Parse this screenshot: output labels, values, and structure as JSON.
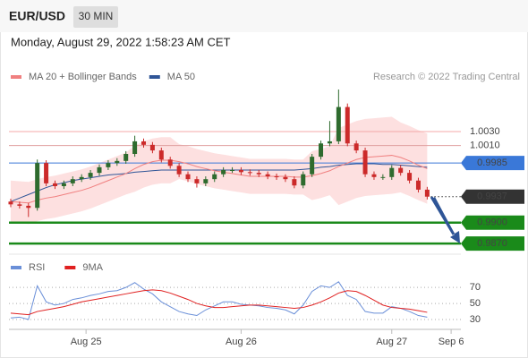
{
  "header": {
    "symbol": "EUR/USD",
    "timeframe": "30 MIN",
    "date": "Monday, August 29, 2022 1:58:23 AM CET"
  },
  "copyright": "Research © 2022 Trading Central",
  "chart_data": [
    {
      "type": "candlestick",
      "legend": [
        {
          "name": "MA 20 + Bollinger Bands",
          "color": "#f08080"
        },
        {
          "name": "MA 50",
          "color": "#2f5597"
        }
      ],
      "open": [
        0.993,
        0.9926,
        0.9924,
        0.9921,
        0.9985,
        0.9956,
        0.9952,
        0.9956,
        0.9962,
        0.9965,
        0.9971,
        0.9979,
        0.9985,
        0.9988,
        0.9998,
        1.0016,
        1.0011,
        1.0003,
        0.999,
        0.9981,
        0.9969,
        0.9962,
        0.9956,
        0.9962,
        0.9969,
        0.9975,
        0.9975,
        0.9972,
        0.9971,
        0.9969,
        0.9966,
        0.9965,
        0.9962,
        0.9953,
        0.9969,
        0.9994,
        1.0013,
        1.0016,
        1.0065,
        1.0013,
        1.0003,
        0.9969,
        0.9965,
        0.9965,
        0.9978,
        0.9971,
        0.996,
        0.9947
      ],
      "high": [
        0.9934,
        0.993,
        0.9928,
        0.999,
        0.9989,
        0.996,
        0.996,
        0.9966,
        0.9969,
        0.9975,
        0.9983,
        0.9989,
        0.9992,
        1.0002,
        1.0024,
        1.002,
        1.0015,
        1.0007,
        0.9994,
        0.9985,
        0.9973,
        0.9966,
        0.9966,
        0.9973,
        0.9979,
        0.9979,
        0.9979,
        0.9976,
        0.9975,
        0.9973,
        0.997,
        0.9969,
        0.9966,
        0.9973,
        0.9998,
        1.0017,
        1.0045,
        1.009,
        1.007,
        1.0017,
        1.0007,
        0.9973,
        0.9969,
        0.9982,
        0.9982,
        0.9975,
        0.9964,
        0.9951
      ],
      "low": [
        0.9922,
        0.992,
        0.9908,
        0.9917,
        0.9952,
        0.9948,
        0.9948,
        0.9952,
        0.9958,
        0.9961,
        0.9967,
        0.9975,
        0.9981,
        0.9984,
        0.9994,
        1.0007,
        0.9999,
        0.9986,
        0.9977,
        0.9965,
        0.9958,
        0.995,
        0.9952,
        0.9958,
        0.9965,
        0.9971,
        0.9968,
        0.9967,
        0.9965,
        0.9962,
        0.9961,
        0.9958,
        0.9949,
        0.9949,
        0.9965,
        0.999,
        1.0009,
        1.0012,
        1.0009,
        0.9999,
        0.9965,
        0.9961,
        0.9961,
        0.9961,
        0.9967,
        0.9956,
        0.9943,
        0.9933
      ],
      "close": [
        0.9926,
        0.9924,
        0.9921,
        0.9985,
        0.9956,
        0.9952,
        0.9956,
        0.9962,
        0.9965,
        0.9971,
        0.9979,
        0.9985,
        0.9988,
        0.9998,
        1.0016,
        1.0011,
        1.0003,
        0.999,
        0.9981,
        0.9969,
        0.9962,
        0.9956,
        0.9962,
        0.9969,
        0.9975,
        0.9975,
        0.9972,
        0.9971,
        0.9969,
        0.9966,
        0.9965,
        0.9962,
        0.9953,
        0.9969,
        0.9994,
        1.0013,
        1.0016,
        1.0065,
        1.0013,
        1.0003,
        0.9969,
        0.9965,
        0.9965,
        0.9978,
        0.9971,
        0.996,
        0.9947,
        0.9937
      ],
      "up_color": "#2e6b2e",
      "down_color": "#cc2a2a",
      "ma20": [
        0.993,
        0.9929,
        0.9928,
        0.9932,
        0.9935,
        0.9937,
        0.994,
        0.9943,
        0.9946,
        0.995,
        0.9955,
        0.996,
        0.9965,
        0.997,
        0.9977,
        0.9983,
        0.9987,
        0.9989,
        0.9989,
        0.9987,
        0.9984,
        0.998,
        0.9977,
        0.9974,
        0.9972,
        0.997,
        0.9968,
        0.9966,
        0.9966,
        0.9966,
        0.9966,
        0.9966,
        0.9965,
        0.9965,
        0.9967,
        0.997,
        0.9974,
        0.998,
        0.9985,
        0.999,
        0.9993,
        0.9994,
        0.9995,
        0.9996,
        0.9993,
        0.9988,
        0.9982,
        0.9977
      ],
      "band_upper": [
        0.996,
        0.9959,
        0.9958,
        0.9962,
        0.9965,
        0.9967,
        0.997,
        0.9973,
        0.9976,
        0.998,
        0.9985,
        0.999,
        0.9995,
        1.0,
        1.001,
        1.0016,
        1.002,
        1.0022,
        1.0022,
        1.0012,
        1.0009,
        1.0005,
        1.0002,
        0.9999,
        0.9997,
        0.9995,
        0.9993,
        0.9991,
        0.9991,
        0.9991,
        0.9991,
        0.9991,
        0.999,
        0.999,
        1.0002,
        1.0005,
        1.0009,
        1.0035,
        1.004,
        1.0045,
        1.0048,
        1.0049,
        1.005,
        1.0051,
        1.0043,
        1.0038,
        1.0032,
        1.0027
      ],
      "band_lower": [
        0.99,
        0.9899,
        0.9898,
        0.9902,
        0.9905,
        0.9907,
        0.991,
        0.9913,
        0.9916,
        0.992,
        0.9925,
        0.993,
        0.9935,
        0.994,
        0.9944,
        0.995,
        0.9954,
        0.9956,
        0.9956,
        0.9962,
        0.9959,
        0.9955,
        0.9952,
        0.9949,
        0.9947,
        0.9945,
        0.9943,
        0.9941,
        0.9941,
        0.9941,
        0.9941,
        0.9941,
        0.994,
        0.994,
        0.9932,
        0.9935,
        0.9939,
        0.9925,
        0.993,
        0.9935,
        0.9938,
        0.9939,
        0.994,
        0.9941,
        0.9943,
        0.9938,
        0.9932,
        0.9927
      ],
      "band_color": "#fde0e0",
      "ma50": [
        0.993,
        0.9935,
        0.994,
        0.9945,
        0.995,
        0.9954,
        0.9957,
        0.996,
        0.9962,
        0.9964,
        0.9966,
        0.9968,
        0.9969,
        0.997,
        0.9972,
        0.9973,
        0.9974,
        0.9975,
        0.9975,
        0.9975,
        0.9975,
        0.9975,
        0.9975,
        0.9975,
        0.9975,
        0.9975,
        0.9975,
        0.9975,
        0.9975,
        0.9975,
        0.9975,
        0.9975,
        0.9975,
        0.9976,
        0.9977,
        0.9979,
        0.998,
        0.9982,
        0.9983,
        0.9984,
        0.9984,
        0.9984,
        0.9983,
        0.9983,
        0.9982,
        0.9981,
        0.998,
        0.9979
      ],
      "ylim": [
        0.986,
        1.009
      ],
      "xlim": [
        -0.2,
        50.8
      ],
      "levels": [
        {
          "value": 1.003,
          "label": "1.0030",
          "color": "#d42020",
          "line_color": "#f4a8a8",
          "boxed": false,
          "dotted": false,
          "thick": false
        },
        {
          "value": 1.001,
          "label": "1.0010",
          "color": "#d42020",
          "line_color": "#e0a0a0",
          "boxed": false,
          "dotted": false,
          "thick": false
        },
        {
          "value": 0.9985,
          "label": "0.9985",
          "color": "#3a78d8",
          "line_color": "#3a78d8",
          "boxed": true,
          "dotted": false,
          "thick": false
        },
        {
          "value": 0.9937,
          "label": "0.9937",
          "color": "#333333",
          "line_color": "#333333",
          "boxed": true,
          "dotted": true,
          "thick": false
        },
        {
          "value": 0.99,
          "label": "0.9900",
          "color": "#1a8a1a",
          "line_color": "#1a8a1a",
          "boxed": true,
          "dotted": false,
          "thick": true
        },
        {
          "value": 0.987,
          "label": "0.9870",
          "color": "#1a8a1a",
          "line_color": "#1a8a1a",
          "boxed": true,
          "dotted": false,
          "thick": true
        }
      ],
      "xticks": [
        {
          "value": 8.5,
          "label": "Aug 25"
        },
        {
          "value": 26,
          "label": "Aug 26"
        },
        {
          "value": 43,
          "label": "Aug 27"
        },
        {
          "value": 49.7,
          "label": "Sep 6"
        }
      ]
    },
    {
      "type": "line",
      "series": [
        {
          "name": "RSI",
          "color": "#6a8fd8",
          "values": [
            32,
            33,
            30,
            72,
            52,
            48,
            50,
            55,
            57,
            60,
            62,
            65,
            66,
            70,
            76,
            68,
            62,
            52,
            46,
            40,
            37,
            35,
            42,
            47,
            52,
            52,
            49,
            48,
            47,
            45,
            44,
            42,
            37,
            48,
            65,
            72,
            70,
            77,
            60,
            55,
            40,
            38,
            38,
            46,
            44,
            40,
            35,
            33
          ]
        },
        {
          "name": "9MA",
          "color": "#e02020",
          "values": [
            38,
            37,
            36,
            40,
            42,
            44,
            46,
            49,
            52,
            54,
            56,
            58,
            60,
            62,
            64,
            66,
            67,
            66,
            63,
            59,
            55,
            50,
            47,
            45,
            45,
            46,
            47,
            48,
            48,
            47,
            46,
            45,
            44,
            45,
            48,
            52,
            57,
            63,
            66,
            65,
            60,
            54,
            48,
            45,
            44,
            43,
            41,
            39
          ]
        }
      ],
      "ylim": [
        25,
        88
      ],
      "yticks": [
        30,
        50,
        70
      ],
      "grid": true
    }
  ]
}
